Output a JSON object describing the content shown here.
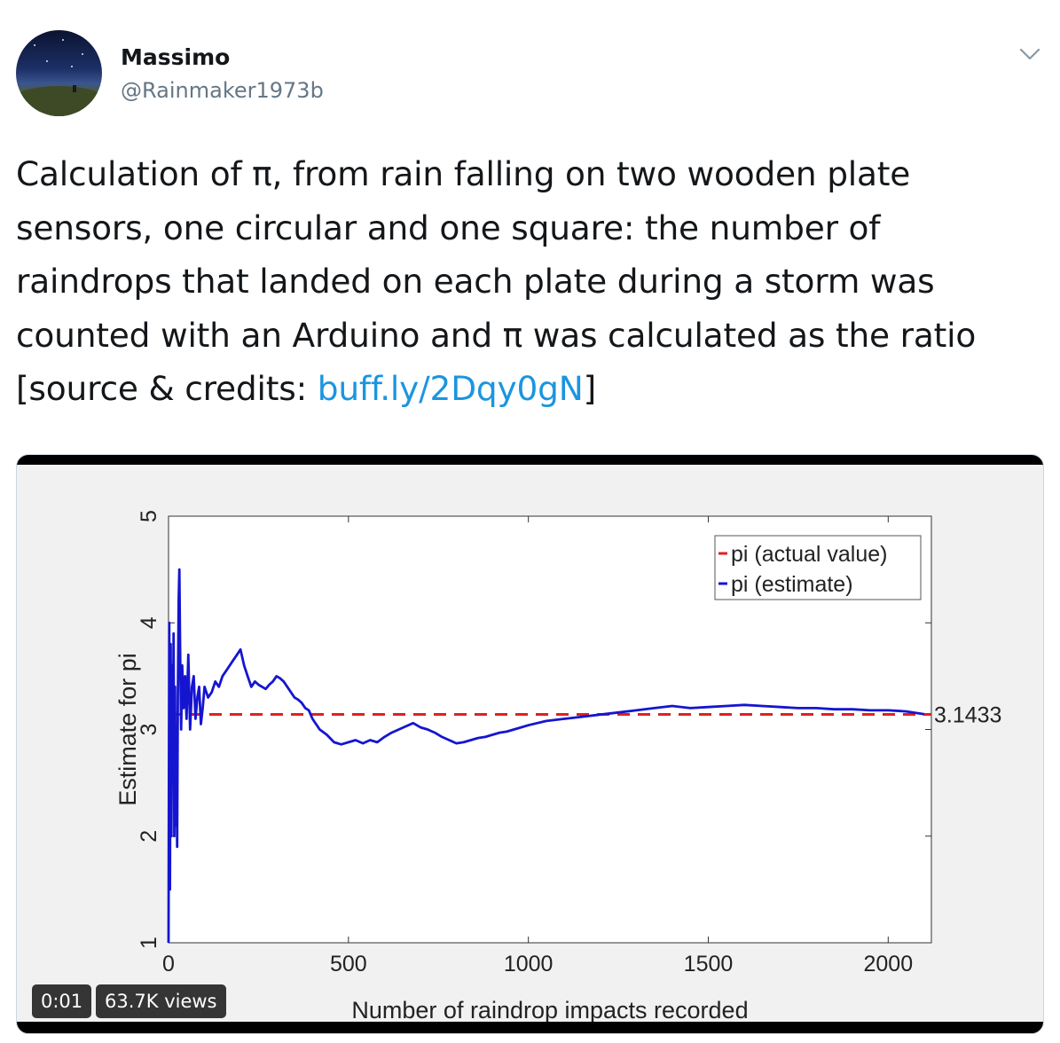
{
  "tweet": {
    "display_name": "Massimo",
    "handle": "@Rainmaker1973b",
    "text_before_link": "Calculation of π, from rain falling on two wooden plate sensors, one circular and one square: the number of raindrops that landed on each plate during a storm was counted with an Arduino and π was calculated as the ratio [source & credits: ",
    "link_text": "buff.ly/2Dqy0gN",
    "text_after_link": "]",
    "link_color": "#1b95e0",
    "menu_icon": "chevron-down-icon"
  },
  "video": {
    "timestamp": "0:01",
    "views": "63.7K views"
  },
  "chart_data": {
    "type": "line",
    "xlabel": "Number of raindrop impacts recorded",
    "ylabel": "Estimate for pi",
    "xlim": [
      0,
      2120
    ],
    "ylim": [
      1,
      5
    ],
    "x_ticks": [
      0,
      500,
      1000,
      1500,
      2000
    ],
    "y_ticks": [
      1,
      2,
      3,
      4,
      5
    ],
    "grid": false,
    "legend_position": "top-right",
    "end_label": "3.1433",
    "series": [
      {
        "name": "pi (actual value)",
        "color": "#e02020",
        "style": "dashed",
        "x": [
          0,
          2120
        ],
        "y": [
          3.1416,
          3.1416
        ]
      },
      {
        "name": "pi (estimate)",
        "color": "#1515d0",
        "style": "solid",
        "x": [
          0,
          2,
          4,
          6,
          8,
          10,
          12,
          14,
          16,
          18,
          20,
          22,
          24,
          26,
          28,
          30,
          32,
          35,
          38,
          42,
          46,
          50,
          55,
          60,
          65,
          70,
          75,
          80,
          85,
          90,
          95,
          100,
          110,
          120,
          130,
          140,
          150,
          160,
          170,
          180,
          190,
          200,
          210,
          220,
          230,
          240,
          250,
          260,
          270,
          280,
          290,
          300,
          310,
          320,
          330,
          340,
          350,
          360,
          370,
          380,
          390,
          400,
          420,
          440,
          460,
          480,
          500,
          520,
          540,
          560,
          580,
          600,
          620,
          640,
          660,
          680,
          700,
          720,
          740,
          760,
          780,
          800,
          820,
          840,
          860,
          880,
          900,
          920,
          940,
          960,
          980,
          1000,
          1050,
          1100,
          1150,
          1200,
          1250,
          1300,
          1350,
          1400,
          1450,
          1500,
          1550,
          1600,
          1650,
          1700,
          1750,
          1800,
          1850,
          1900,
          1950,
          2000,
          2050,
          2100
        ],
        "y": [
          1.0,
          4.0,
          1.5,
          3.8,
          2.0,
          3.6,
          2.5,
          3.9,
          2.0,
          3.4,
          2.1,
          3.0,
          1.9,
          3.3,
          4.2,
          4.5,
          3.8,
          3.0,
          3.6,
          3.2,
          3.5,
          3.1,
          3.7,
          3.0,
          3.4,
          3.5,
          3.1,
          3.3,
          3.4,
          3.05,
          3.2,
          3.4,
          3.3,
          3.35,
          3.45,
          3.4,
          3.5,
          3.55,
          3.6,
          3.65,
          3.7,
          3.75,
          3.6,
          3.5,
          3.4,
          3.45,
          3.42,
          3.4,
          3.38,
          3.42,
          3.45,
          3.5,
          3.48,
          3.45,
          3.4,
          3.35,
          3.3,
          3.28,
          3.25,
          3.2,
          3.18,
          3.1,
          3.0,
          2.95,
          2.88,
          2.86,
          2.88,
          2.9,
          2.87,
          2.9,
          2.88,
          2.93,
          2.97,
          3.0,
          3.03,
          3.06,
          3.02,
          3.0,
          2.97,
          2.93,
          2.9,
          2.87,
          2.88,
          2.9,
          2.92,
          2.93,
          2.95,
          2.97,
          2.98,
          3.0,
          3.02,
          3.04,
          3.08,
          3.1,
          3.12,
          3.14,
          3.16,
          3.18,
          3.2,
          3.22,
          3.2,
          3.21,
          3.22,
          3.23,
          3.22,
          3.21,
          3.2,
          3.2,
          3.19,
          3.19,
          3.18,
          3.18,
          3.17,
          3.1433
        ]
      }
    ]
  }
}
